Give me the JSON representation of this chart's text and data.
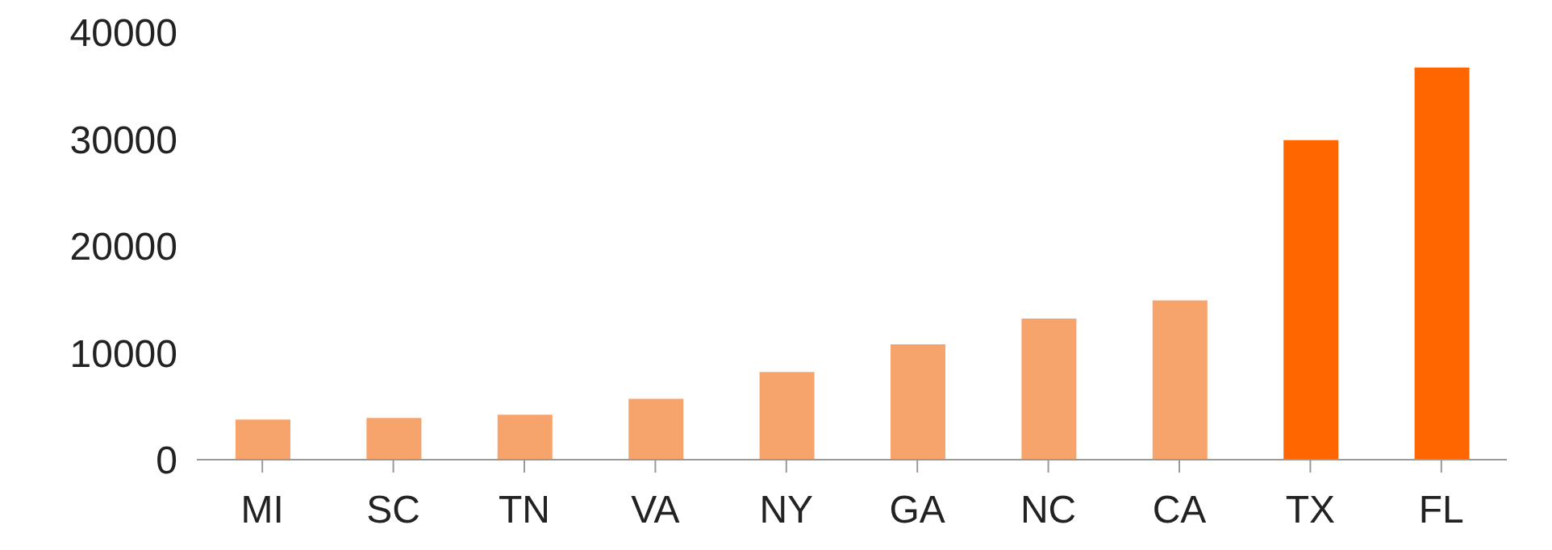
{
  "chart_data": {
    "type": "bar",
    "categories": [
      "MI",
      "SC",
      "TN",
      "VA",
      "NY",
      "GA",
      "NC",
      "CA",
      "TX",
      "FL"
    ],
    "values": [
      3750,
      3900,
      4200,
      5700,
      8200,
      10800,
      13200,
      14900,
      29900,
      36700
    ],
    "colors": [
      "#f7a46c",
      "#f7a46c",
      "#f7a46c",
      "#f7a46c",
      "#f7a46c",
      "#f7a46c",
      "#f7a46c",
      "#f7a46c",
      "#ff6600",
      "#ff6600"
    ],
    "ylim": [
      0,
      40000
    ],
    "yticks": [
      0,
      10000,
      20000,
      30000,
      40000
    ],
    "grid": false,
    "legend": false
  }
}
